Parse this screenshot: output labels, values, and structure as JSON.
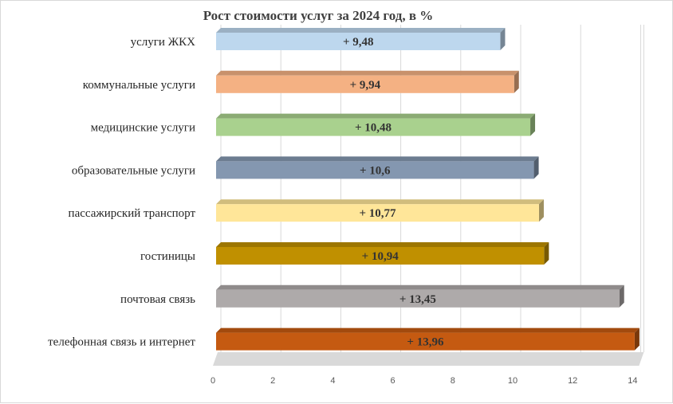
{
  "chart_data": {
    "type": "bar",
    "orientation": "horizontal",
    "title": "Рост стоимости услуг за 2024 год, в %",
    "xlabel": "",
    "ylabel": "",
    "xlim": [
      0,
      14
    ],
    "ticks": [
      "0",
      "2",
      "4",
      "6",
      "8",
      "10",
      "12",
      "14"
    ],
    "grid": true,
    "legend": "none",
    "categories": [
      "услуги ЖКХ",
      "коммунальные услуги",
      "медицинские услуги",
      "образовательные услуги",
      "пассажирский транспорт",
      "гостиницы",
      "почтовая связь",
      "телефонная связь и интернет"
    ],
    "values": [
      9.48,
      9.94,
      10.48,
      10.6,
      10.77,
      10.94,
      13.45,
      13.96
    ],
    "data_labels": [
      "+ 9,48",
      "+ 9,94",
      "+ 10,48",
      "+ 10,6",
      "+ 10,77",
      "+ 10,94",
      "+ 13,45",
      "+ 13,96"
    ],
    "colors": [
      "#bdd7ee",
      "#f4b183",
      "#a9d18e",
      "#8497b0",
      "#ffe699",
      "#c09000",
      "#aeaaaa",
      "#c55a11"
    ]
  }
}
